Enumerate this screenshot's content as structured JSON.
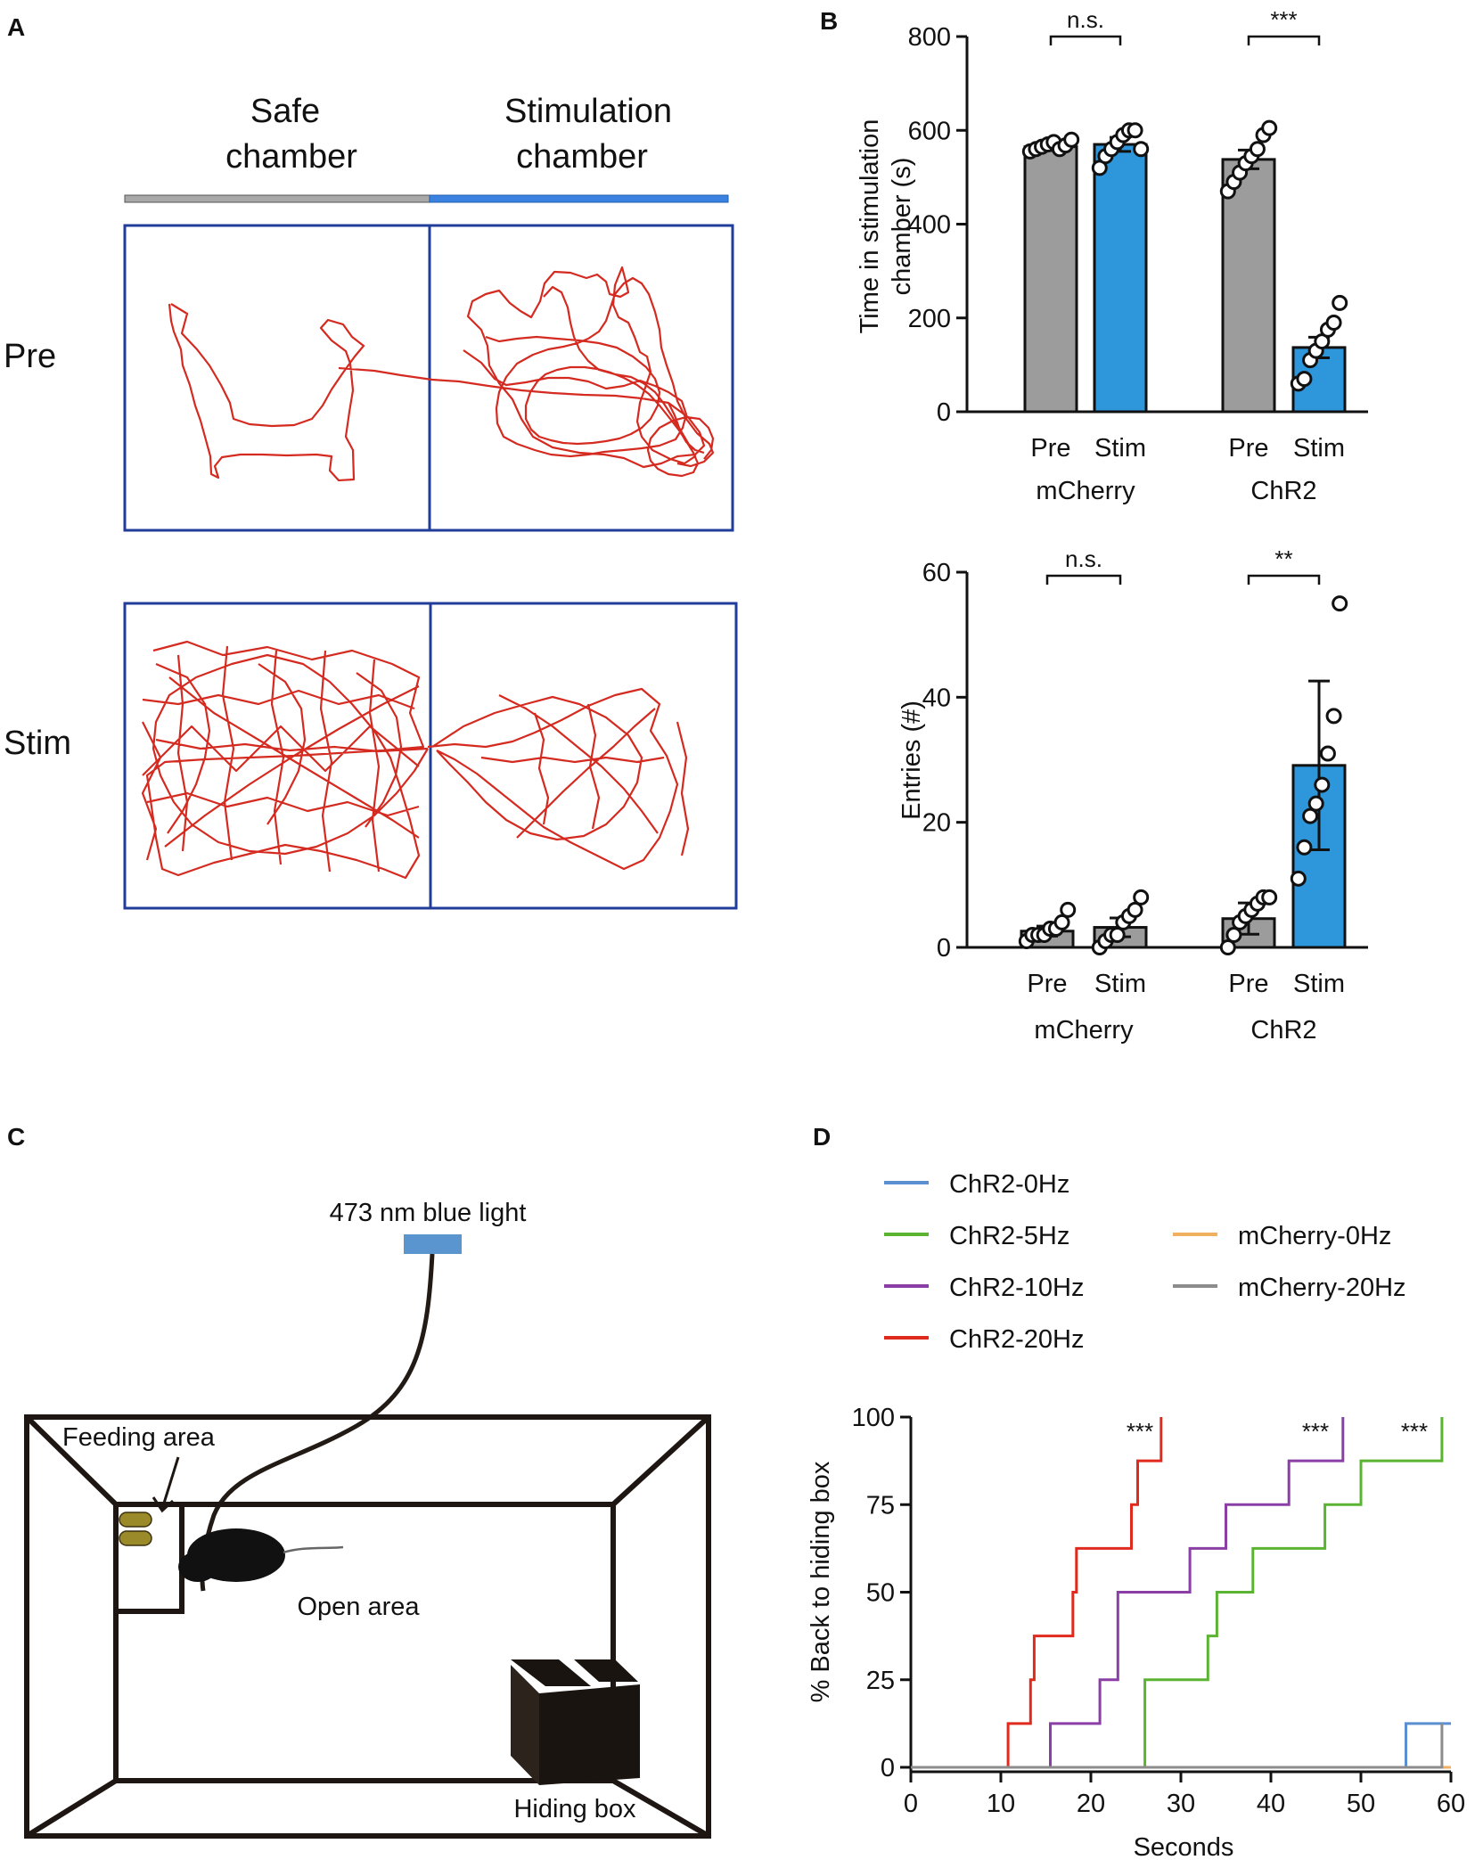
{
  "panels": {
    "A": {
      "letter": "A",
      "col_safe_1": "Safe",
      "col_safe_2": "chamber",
      "col_stim_1": "Stimulation",
      "col_stim_2": "chamber",
      "row_pre": "Pre",
      "row_stim": "Stim",
      "trace_color": "#d42a20",
      "frame_color": "#1f3d99",
      "bar_safe_color": "#a8a8a8",
      "bar_stim_color": "#3b82e0"
    },
    "B": {
      "letter": "B"
    },
    "C": {
      "letter": "C",
      "light_label": "473 nm blue light",
      "feeding_label": "Feeding area",
      "open_label": "Open area",
      "hiding_label": "Hiding box",
      "light_color": "#5b95d0",
      "food_color": "#9b8a2a"
    },
    "D": {
      "letter": "D"
    }
  },
  "chart_data": [
    {
      "id": "time-in-chamber",
      "type": "bar",
      "ylabel_line1": "Time in stimulation",
      "ylabel_line2": "chamber (s)",
      "ylim": [
        0,
        800
      ],
      "yticks": [
        0,
        200,
        400,
        600,
        800
      ],
      "categories": [
        "Pre",
        "Stim",
        "Pre",
        "Stim"
      ],
      "groups": [
        "mCherry",
        "ChR2"
      ],
      "values": [
        565,
        570,
        538,
        137
      ],
      "sem": [
        8,
        15,
        20,
        22
      ],
      "colors": [
        "#9c9c9c",
        "#2e97dc",
        "#9c9c9c",
        "#2e97dc"
      ],
      "points": [
        [
          555,
          560,
          565,
          570,
          575,
          560,
          568,
          580
        ],
        [
          520,
          545,
          560,
          575,
          590,
          600,
          600,
          560
        ],
        [
          470,
          490,
          510,
          530,
          545,
          560,
          590,
          605
        ],
        [
          60,
          70,
          110,
          130,
          150,
          175,
          190,
          232
        ]
      ],
      "significance": [
        {
          "pair": [
            0,
            1
          ],
          "label": "n.s."
        },
        {
          "pair": [
            2,
            3
          ],
          "label": "***"
        }
      ]
    },
    {
      "id": "entries",
      "type": "bar",
      "ylabel": "Entries (#)",
      "ylim": [
        0,
        60
      ],
      "yticks": [
        0,
        20,
        40,
        60
      ],
      "categories": [
        "Pre",
        "Stim",
        "Pre",
        "Stim"
      ],
      "groups": [
        "mCherry",
        "ChR2"
      ],
      "values": [
        2.6,
        3.2,
        4.6,
        29.1
      ],
      "sem": [
        0.8,
        1.5,
        2.5,
        13.5
      ],
      "colors": [
        "#9c9c9c",
        "#9c9c9c",
        "#9c9c9c",
        "#2e97dc"
      ],
      "points": [
        [
          1,
          2,
          2,
          2,
          3,
          3,
          4,
          6
        ],
        [
          0,
          1,
          2,
          2,
          4,
          5,
          6,
          8
        ],
        [
          0,
          2,
          4,
          5,
          6,
          7,
          8,
          8
        ],
        [
          11,
          16,
          21,
          23,
          26,
          31,
          37,
          55
        ]
      ],
      "significance": [
        {
          "pair": [
            0,
            1
          ],
          "label": "n.s."
        },
        {
          "pair": [
            2,
            3
          ],
          "label": "**"
        }
      ]
    },
    {
      "id": "back-to-box",
      "type": "line",
      "step": true,
      "xlabel": "Seconds",
      "ylabel": "% Back to hiding box",
      "xlim": [
        0,
        60
      ],
      "ylim": [
        0,
        100
      ],
      "xticks": [
        0,
        10,
        20,
        30,
        40,
        50,
        60
      ],
      "yticks": [
        0,
        25,
        50,
        75,
        100
      ],
      "legend_position": "top",
      "series": [
        {
          "name": "ChR2-0Hz",
          "color": "#5b8fd1",
          "x": [
            0,
            55,
            55,
            60
          ],
          "y": [
            0,
            0,
            12.5,
            12.5
          ]
        },
        {
          "name": "ChR2-5Hz",
          "color": "#5ab432",
          "x": [
            0,
            26,
            26,
            29,
            29,
            33,
            33,
            34,
            34,
            38,
            38,
            46,
            46,
            50,
            50,
            59,
            59
          ],
          "y": [
            0,
            0,
            25,
            25,
            25,
            25,
            37.5,
            37.5,
            50,
            50,
            62.5,
            62.5,
            75,
            75,
            87.5,
            87.5,
            100
          ]
        },
        {
          "name": "ChR2-10Hz",
          "color": "#8a3ea6",
          "x": [
            0,
            15.5,
            15.5,
            21,
            21,
            23,
            23,
            31,
            31,
            35,
            35,
            42,
            42,
            48,
            48
          ],
          "y": [
            0,
            0,
            12.5,
            12.5,
            25,
            25,
            50,
            50,
            62.5,
            62.5,
            75,
            75,
            87.5,
            87.5,
            100
          ]
        },
        {
          "name": "ChR2-20Hz",
          "color": "#e02a1e",
          "x": [
            0,
            10.8,
            10.8,
            13.3,
            13.3,
            13.7,
            13.7,
            18,
            18,
            18.4,
            18.4,
            24.5,
            24.5,
            25.2,
            25.2,
            27.8,
            27.8
          ],
          "y": [
            0,
            0,
            12.5,
            12.5,
            25,
            25,
            37.5,
            37.5,
            50,
            50,
            62.5,
            62.5,
            75,
            75,
            87.5,
            87.5,
            100
          ]
        },
        {
          "name": "mCherry-0Hz",
          "color": "#f0b060",
          "x": [
            0,
            60
          ],
          "y": [
            0,
            0
          ]
        },
        {
          "name": "mCherry-20Hz",
          "color": "#8c8c8c",
          "x": [
            0,
            59,
            59,
            59
          ],
          "y": [
            0,
            0,
            12.5,
            0
          ]
        }
      ],
      "annotations": [
        "***",
        "***",
        "***"
      ]
    }
  ]
}
